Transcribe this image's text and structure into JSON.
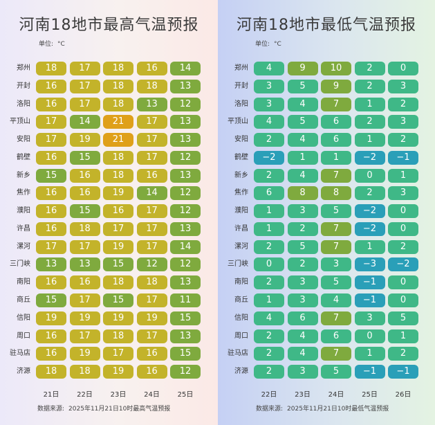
{
  "colors": {
    "cold": "#2a9fb8",
    "cool": "#3fb887",
    "mild": "#7faa3e",
    "warm": "#c3b32a",
    "hot": "#dfa01a"
  },
  "max_panel": {
    "title": "河南18地市最高气温预报",
    "unit_label": "单位:",
    "unit_value": "°C",
    "source_label": "数据来源:",
    "source_text": "2025年11月21日10时最高气温预报"
  },
  "min_panel": {
    "title": "河南18地市最低气温预报",
    "unit_label": "单位:",
    "unit_value": "°C",
    "source_label": "数据来源:",
    "source_text": "2025年11月21日10时最低气温预报"
  },
  "chart_data": [
    {
      "type": "heatmap",
      "title": "河南18地市最高气温预报",
      "unit": "°C",
      "rows": [
        "郑州",
        "开封",
        "洛阳",
        "平顶山",
        "安阳",
        "鹤壁",
        "新乡",
        "焦作",
        "濮阳",
        "许昌",
        "漯河",
        "三门峡",
        "南阳",
        "商丘",
        "信阳",
        "周口",
        "驻马店",
        "济源"
      ],
      "columns": [
        "21日",
        "22日",
        "23日",
        "24日",
        "25日"
      ],
      "values": [
        [
          18,
          17,
          18,
          16,
          14
        ],
        [
          16,
          17,
          18,
          18,
          13
        ],
        [
          16,
          17,
          18,
          13,
          12
        ],
        [
          17,
          14,
          21,
          17,
          13
        ],
        [
          17,
          19,
          21,
          17,
          13
        ],
        [
          16,
          15,
          18,
          17,
          12
        ],
        [
          15,
          16,
          18,
          16,
          13
        ],
        [
          16,
          16,
          19,
          14,
          12
        ],
        [
          16,
          15,
          16,
          17,
          12
        ],
        [
          16,
          18,
          17,
          17,
          13
        ],
        [
          17,
          17,
          19,
          17,
          14
        ],
        [
          13,
          13,
          15,
          12,
          12
        ],
        [
          16,
          16,
          18,
          18,
          13
        ],
        [
          15,
          17,
          15,
          17,
          11
        ],
        [
          19,
          19,
          19,
          19,
          15
        ],
        [
          16,
          17,
          18,
          17,
          13
        ],
        [
          16,
          19,
          17,
          16,
          15
        ],
        [
          18,
          18,
          19,
          16,
          12
        ]
      ],
      "source": "2025年11月21日10时最高气温预报"
    },
    {
      "type": "heatmap",
      "title": "河南18地市最低气温预报",
      "unit": "°C",
      "rows": [
        "郑州",
        "开封",
        "洛阳",
        "平顶山",
        "安阳",
        "鹤壁",
        "新乡",
        "焦作",
        "濮阳",
        "许昌",
        "漯河",
        "三门峡",
        "南阳",
        "商丘",
        "信阳",
        "周口",
        "驻马店",
        "济源"
      ],
      "columns": [
        "22日",
        "23日",
        "24日",
        "25日",
        "26日"
      ],
      "values": [
        [
          4,
          9,
          10,
          2,
          0
        ],
        [
          3,
          5,
          9,
          2,
          3
        ],
        [
          3,
          4,
          7,
          1,
          2
        ],
        [
          4,
          5,
          6,
          2,
          3
        ],
        [
          2,
          4,
          6,
          1,
          2
        ],
        [
          -2,
          1,
          1,
          -2,
          -1
        ],
        [
          2,
          4,
          7,
          0,
          1
        ],
        [
          6,
          8,
          8,
          2,
          3
        ],
        [
          1,
          3,
          5,
          -2,
          0
        ],
        [
          1,
          2,
          7,
          -2,
          0
        ],
        [
          2,
          5,
          7,
          1,
          2
        ],
        [
          0,
          2,
          3,
          -3,
          -2
        ],
        [
          2,
          3,
          5,
          -1,
          0
        ],
        [
          1,
          3,
          4,
          -1,
          0
        ],
        [
          4,
          6,
          7,
          3,
          5
        ],
        [
          2,
          4,
          6,
          0,
          1
        ],
        [
          2,
          4,
          7,
          1,
          2
        ],
        [
          2,
          3,
          5,
          -1,
          -1
        ]
      ],
      "source": "2025年11月21日10时最低气温预报"
    }
  ]
}
